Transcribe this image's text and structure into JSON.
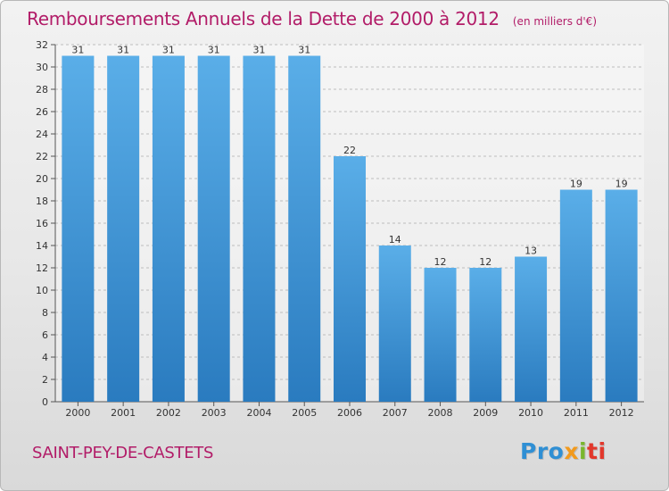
{
  "header": {
    "title": "Remboursements Annuels de la Dette de 2000 à 2012",
    "subtitle": "(en milliers d'€)"
  },
  "footer": {
    "place": "SAINT-PEY-DE-CASTETS",
    "logo": [
      "Pro",
      "x",
      "i",
      "ti"
    ]
  },
  "colors": {
    "title": "#b21c68",
    "bar_top": "#5aaee8",
    "bar_bottom": "#2a7bbf",
    "logo_blue": "#2f8fd4",
    "logo_orange": "#f29a1d",
    "logo_green": "#7ab62e"
  },
  "chart_data": {
    "type": "bar",
    "categories": [
      "2000",
      "2001",
      "2002",
      "2003",
      "2004",
      "2005",
      "2006",
      "2007",
      "2008",
      "2009",
      "2010",
      "2011",
      "2012"
    ],
    "values": [
      31,
      31,
      31,
      31,
      31,
      31,
      22,
      14,
      12,
      12,
      13,
      19,
      19
    ],
    "ylim": [
      0,
      32
    ],
    "yticks": [
      0,
      2,
      4,
      6,
      8,
      10,
      12,
      14,
      16,
      18,
      20,
      22,
      24,
      26,
      28,
      30,
      32
    ],
    "grid": true,
    "data_labels": true
  }
}
